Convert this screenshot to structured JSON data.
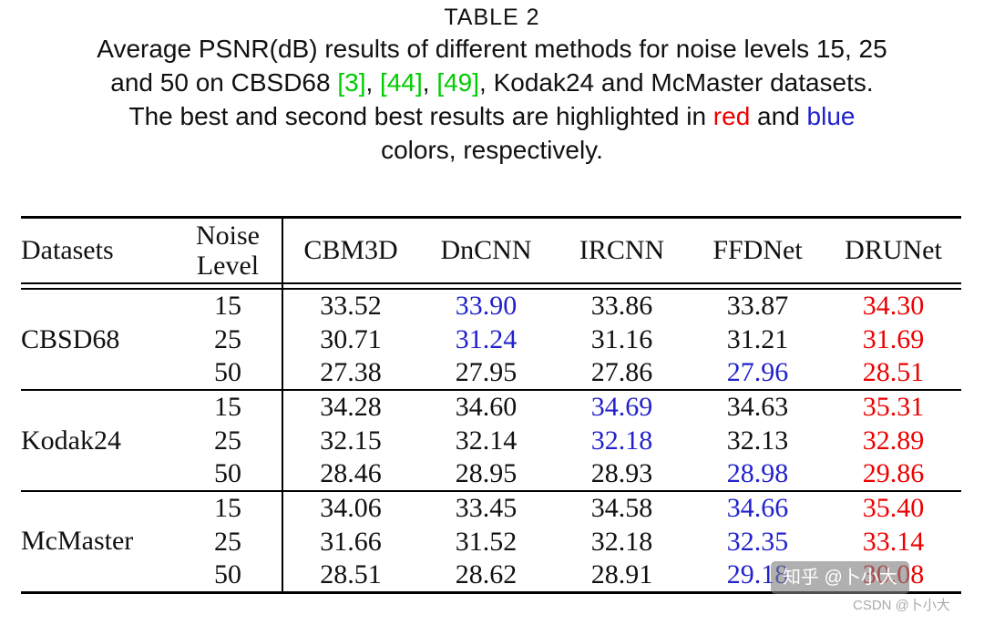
{
  "title": "TABLE 2",
  "caption": {
    "lines": [
      [
        {
          "t": "Average PSNR(dB) results of different methods for noise levels 15, 25"
        }
      ],
      [
        {
          "t": "and 50 on CBSD68 "
        },
        {
          "t": "[3]",
          "c": "green"
        },
        {
          "t": ", "
        },
        {
          "t": "[44]",
          "c": "green"
        },
        {
          "t": ", "
        },
        {
          "t": "[49]",
          "c": "green"
        },
        {
          "t": ", Kodak24 and McMaster datasets."
        }
      ],
      [
        {
          "t": "The best and second best results are highlighted in "
        },
        {
          "t": "red",
          "c": "red"
        },
        {
          "t": " and "
        },
        {
          "t": "blue",
          "c": "blue"
        }
      ],
      [
        {
          "t": "colors, respectively."
        }
      ]
    ]
  },
  "table": {
    "header": {
      "datasets": "Datasets",
      "noise_line1": "Noise",
      "noise_line2": "Level",
      "methods": [
        "CBM3D",
        "DnCNN",
        "IRCNN",
        "FFDNet",
        "DRUNet"
      ]
    },
    "groups": [
      {
        "dataset": "CBSD68",
        "rows": [
          {
            "noise": "15",
            "values": [
              {
                "v": "33.52"
              },
              {
                "v": "33.90",
                "c": "blue"
              },
              {
                "v": "33.86"
              },
              {
                "v": "33.87"
              },
              {
                "v": "34.30",
                "c": "red"
              }
            ]
          },
          {
            "noise": "25",
            "values": [
              {
                "v": "30.71"
              },
              {
                "v": "31.24",
                "c": "blue"
              },
              {
                "v": "31.16"
              },
              {
                "v": "31.21"
              },
              {
                "v": "31.69",
                "c": "red"
              }
            ]
          },
          {
            "noise": "50",
            "values": [
              {
                "v": "27.38"
              },
              {
                "v": "27.95"
              },
              {
                "v": "27.86"
              },
              {
                "v": "27.96",
                "c": "blue"
              },
              {
                "v": "28.51",
                "c": "red"
              }
            ]
          }
        ]
      },
      {
        "dataset": "Kodak24",
        "rows": [
          {
            "noise": "15",
            "values": [
              {
                "v": "34.28"
              },
              {
                "v": "34.60"
              },
              {
                "v": "34.69",
                "c": "blue"
              },
              {
                "v": "34.63"
              },
              {
                "v": "35.31",
                "c": "red"
              }
            ]
          },
          {
            "noise": "25",
            "values": [
              {
                "v": "32.15"
              },
              {
                "v": "32.14"
              },
              {
                "v": "32.18",
                "c": "blue"
              },
              {
                "v": "32.13"
              },
              {
                "v": "32.89",
                "c": "red"
              }
            ]
          },
          {
            "noise": "50",
            "values": [
              {
                "v": "28.46"
              },
              {
                "v": "28.95"
              },
              {
                "v": "28.93"
              },
              {
                "v": "28.98",
                "c": "blue"
              },
              {
                "v": "29.86",
                "c": "red"
              }
            ]
          }
        ]
      },
      {
        "dataset": "McMaster",
        "rows": [
          {
            "noise": "15",
            "values": [
              {
                "v": "34.06"
              },
              {
                "v": "33.45"
              },
              {
                "v": "34.58"
              },
              {
                "v": "34.66",
                "c": "blue"
              },
              {
                "v": "35.40",
                "c": "red"
              }
            ]
          },
          {
            "noise": "25",
            "values": [
              {
                "v": "31.66"
              },
              {
                "v": "31.52"
              },
              {
                "v": "32.18"
              },
              {
                "v": "32.35",
                "c": "blue"
              },
              {
                "v": "33.14",
                "c": "red"
              }
            ]
          },
          {
            "noise": "50",
            "values": [
              {
                "v": "28.51"
              },
              {
                "v": "28.62"
              },
              {
                "v": "28.91"
              },
              {
                "v": "29.18",
                "c": "blue"
              },
              {
                "v": "30.08",
                "c": "red"
              }
            ]
          }
        ]
      }
    ]
  },
  "colors": {
    "red": "#ee0000",
    "blue": "#2222cc",
    "green": "#00cc00"
  },
  "watermarks": {
    "zhihu": "知乎 @卜小大",
    "csdn": "CSDN @卜小大"
  }
}
